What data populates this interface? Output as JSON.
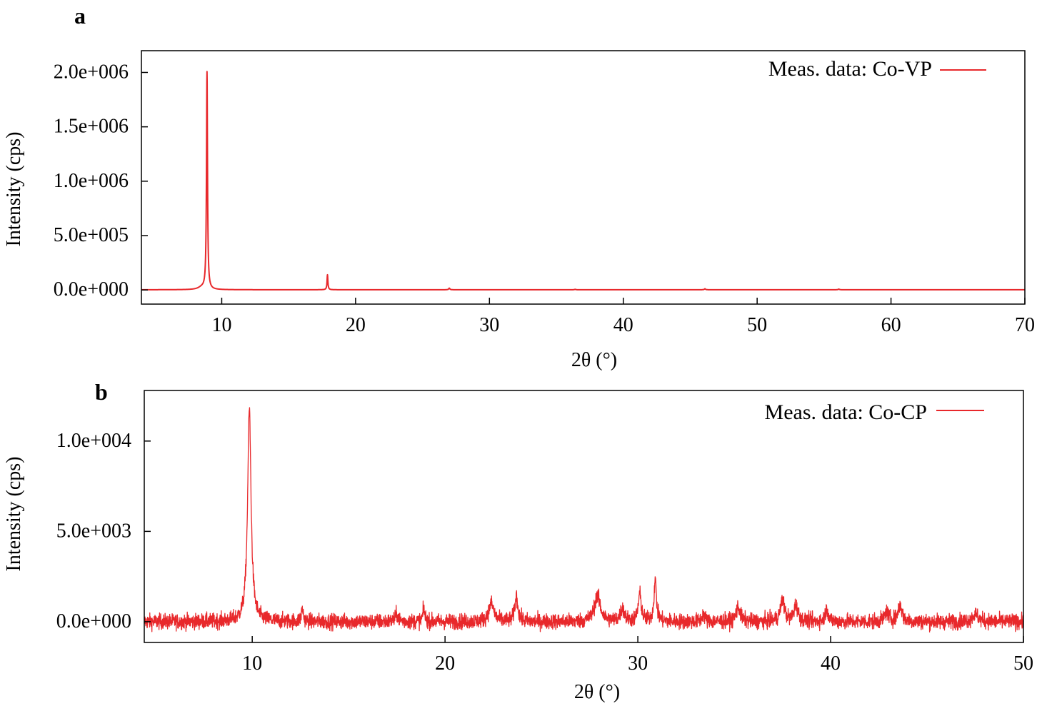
{
  "chart_data": [
    {
      "type": "line",
      "panel_label": "a",
      "xlabel": "2θ (°)",
      "ylabel": "Intensity (cps)",
      "xlim": [
        4,
        70
      ],
      "ylim": [
        -130000,
        2200000
      ],
      "xticks": [
        10,
        20,
        30,
        40,
        50,
        60,
        70
      ],
      "xtick_labels": [
        "10",
        "20",
        "30",
        "40",
        "50",
        "60",
        "70"
      ],
      "yticks": [
        0,
        500000,
        1000000,
        1500000,
        2000000
      ],
      "ytick_labels": [
        "0.0e+000",
        "5.0e+005",
        "1.0e+006",
        "1.5e+006",
        "2.0e+006"
      ],
      "grid": false,
      "legend_position": "top-right",
      "series": [
        {
          "name": "Meas. data: Co-VP",
          "color": "#e8282b",
          "baseline": 2000,
          "peaks": [
            {
              "x": 8.9,
              "height": 1998000,
              "width": 0.07
            },
            {
              "x": 8.5,
              "height": 20000,
              "width": 0.5
            },
            {
              "x": 17.9,
              "height": 138000,
              "width": 0.06
            },
            {
              "x": 27.0,
              "height": 15000,
              "width": 0.08
            },
            {
              "x": 36.4,
              "height": 4000,
              "width": 0.08
            },
            {
              "x": 46.1,
              "height": 9000,
              "width": 0.08
            },
            {
              "x": 56.1,
              "height": 6000,
              "width": 0.08
            }
          ]
        }
      ]
    },
    {
      "type": "line",
      "panel_label": "b",
      "xlabel": "2θ (°)",
      "ylabel": "Intensity (cps)",
      "xlim": [
        4.4,
        50
      ],
      "ylim": [
        -1150,
        12800
      ],
      "xticks": [
        10,
        20,
        30,
        40,
        50
      ],
      "xtick_labels": [
        "10",
        "20",
        "30",
        "40",
        "50"
      ],
      "yticks": [
        0,
        5000,
        10000
      ],
      "ytick_labels": [
        "0.0e+000",
        "5.0e+003",
        "1.0e+004"
      ],
      "grid": false,
      "legend_position": "top-right",
      "series": [
        {
          "name": "Meas. data: Co-CP",
          "color": "#e8282b",
          "baseline": 0,
          "noise": 420,
          "peaks": [
            {
              "x": 9.85,
              "height": 11800,
              "width": 0.17
            },
            {
              "x": 12.6,
              "height": 700,
              "width": 0.1
            },
            {
              "x": 17.5,
              "height": 400,
              "width": 0.15
            },
            {
              "x": 18.9,
              "height": 700,
              "width": 0.1
            },
            {
              "x": 22.4,
              "height": 1000,
              "width": 0.25
            },
            {
              "x": 23.7,
              "height": 1400,
              "width": 0.15
            },
            {
              "x": 27.9,
              "height": 1400,
              "width": 0.3
            },
            {
              "x": 29.2,
              "height": 700,
              "width": 0.2
            },
            {
              "x": 30.1,
              "height": 1500,
              "width": 0.15
            },
            {
              "x": 30.9,
              "height": 2300,
              "width": 0.12
            },
            {
              "x": 33.4,
              "height": 400,
              "width": 0.15
            },
            {
              "x": 35.2,
              "height": 800,
              "width": 0.2
            },
            {
              "x": 37.5,
              "height": 1200,
              "width": 0.2
            },
            {
              "x": 38.2,
              "height": 900,
              "width": 0.2
            },
            {
              "x": 39.8,
              "height": 700,
              "width": 0.15
            },
            {
              "x": 42.9,
              "height": 500,
              "width": 0.2
            },
            {
              "x": 43.6,
              "height": 900,
              "width": 0.2
            },
            {
              "x": 47.5,
              "height": 400,
              "width": 0.3
            }
          ]
        }
      ]
    }
  ]
}
